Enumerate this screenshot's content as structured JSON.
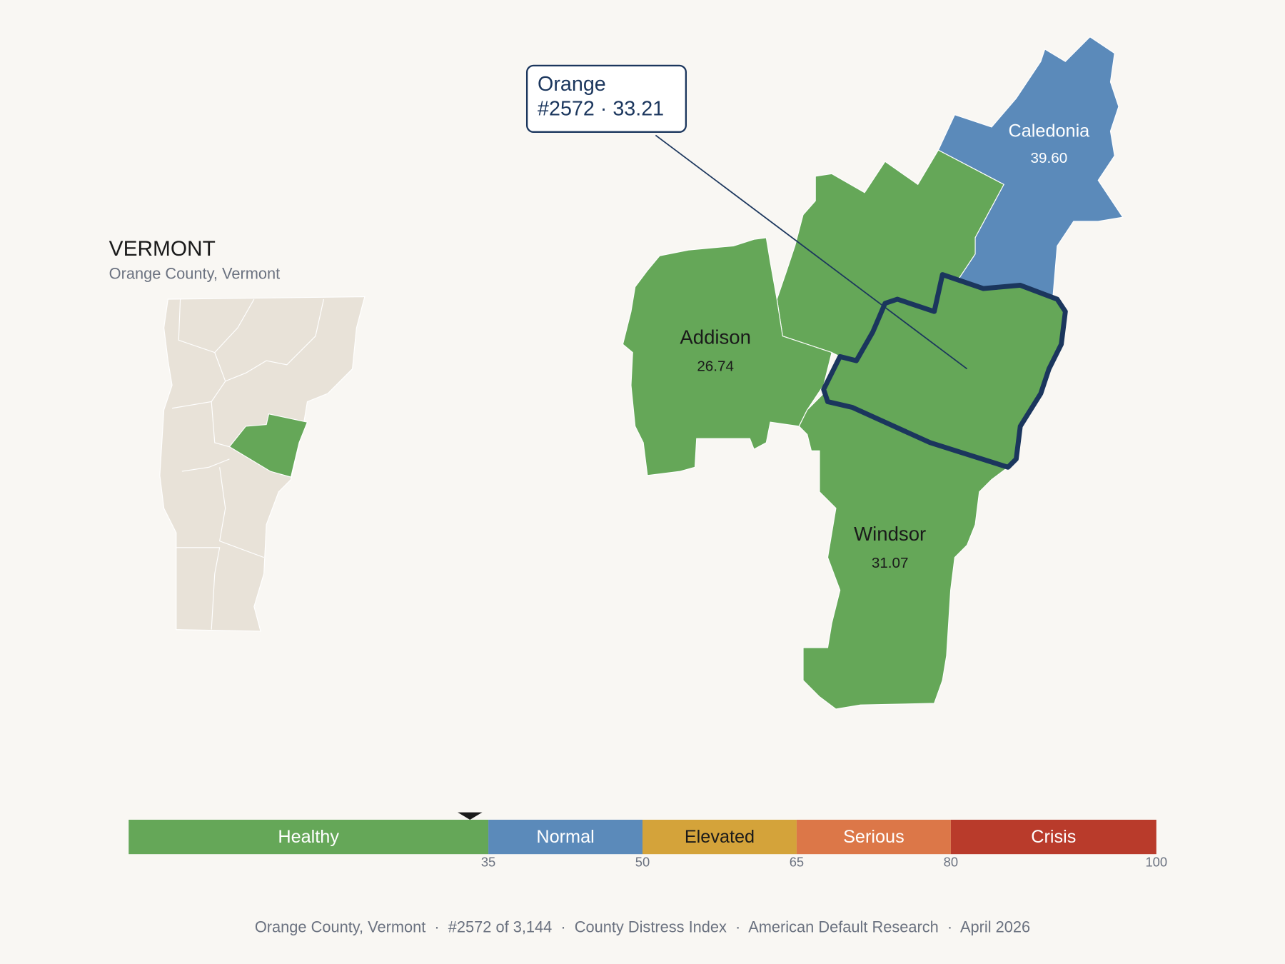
{
  "map": {
    "title": "VERMONT",
    "subtitle": "Orange County, Vermont",
    "callout": {
      "name": "Orange",
      "detail": "#2572 · 33.21",
      "score": 33.21
    },
    "counties": [
      {
        "name": "Addison",
        "value": 26.74
      },
      {
        "name": "Windsor",
        "value": 31.07
      },
      {
        "name": "Caledonia",
        "value": 39.6,
        "value_label": "39.60"
      }
    ],
    "scale": {
      "range": [
        0,
        100
      ],
      "ticks": [
        35,
        50,
        65,
        80,
        100
      ],
      "bands": [
        {
          "label": "Healthy",
          "color": "#65a758",
          "text_color": "#ffffff"
        },
        {
          "label": "Normal",
          "color": "#5b8aba",
          "text_color": "#ffffff"
        },
        {
          "label": "Elevated",
          "color": "#d4a33a",
          "text_color": "#1a1a1a"
        },
        {
          "label": "Serious",
          "color": "#dc7748",
          "text_color": "#ffffff"
        },
        {
          "label": "Crisis",
          "color": "#b93b2b",
          "text_color": "#ffffff"
        }
      ]
    },
    "footer": "Orange County, Vermont  ·  #2572 of 3,144  ·  County Distress Index  ·  American Default Research  ·  April 2026"
  }
}
